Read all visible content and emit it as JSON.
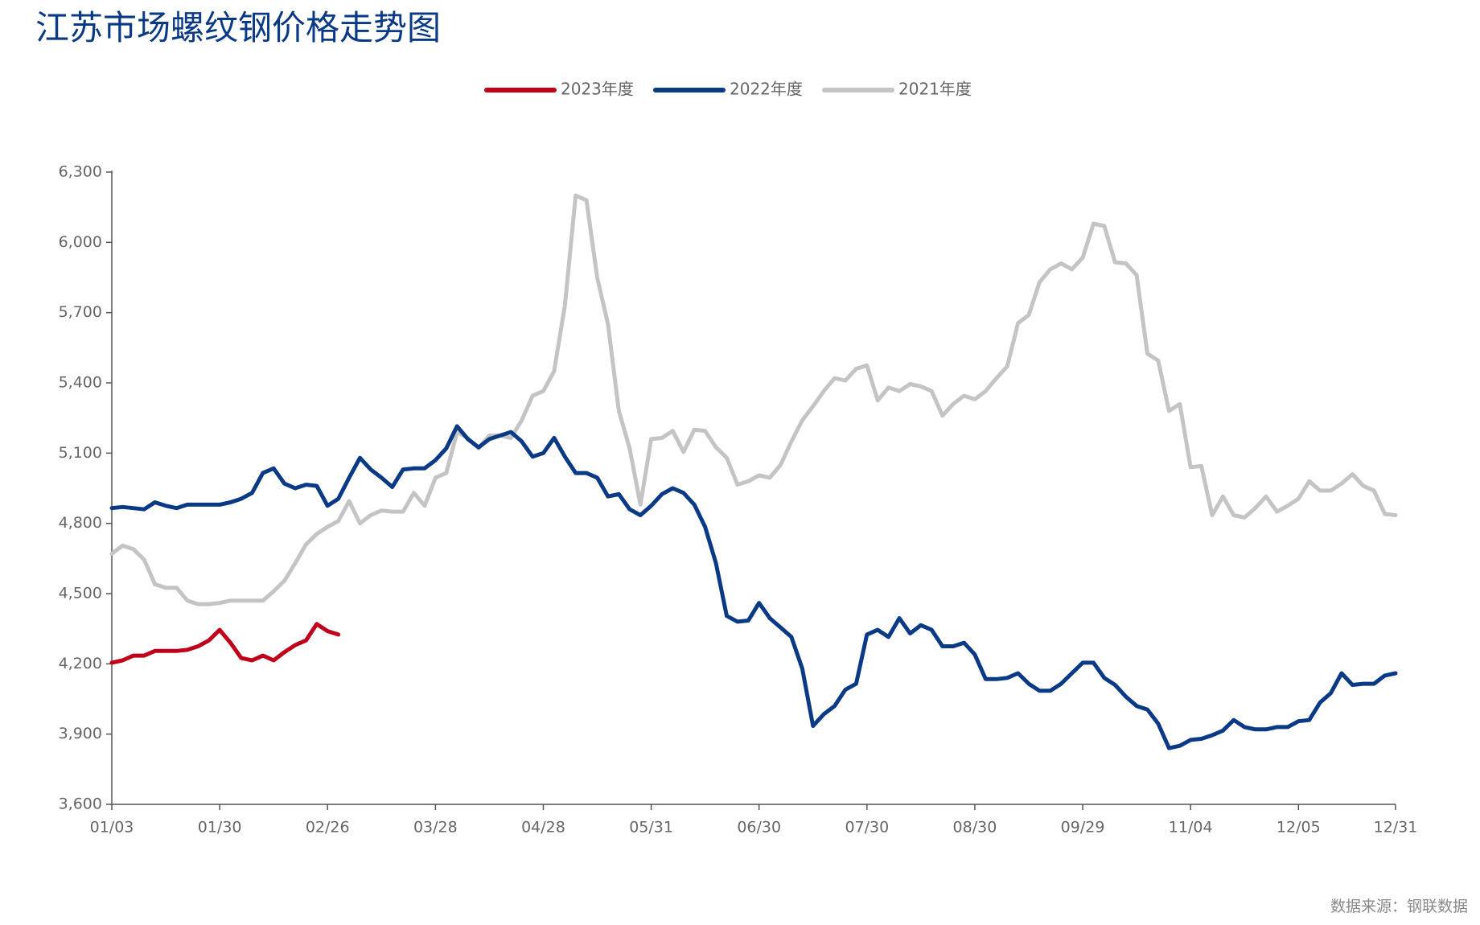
{
  "chart_data": {
    "type": "line",
    "title": "江苏市场螺纹钢价格走势图",
    "source": "数据来源：钢联数据",
    "categories": [
      "01/03",
      null,
      null,
      null,
      null,
      null,
      null,
      null,
      null,
      null,
      "01/30",
      null,
      null,
      null,
      null,
      null,
      null,
      null,
      null,
      null,
      "02/26",
      null,
      null,
      null,
      null,
      null,
      null,
      null,
      null,
      null,
      "03/28",
      null,
      null,
      null,
      null,
      null,
      null,
      null,
      null,
      null,
      "04/28",
      null,
      null,
      null,
      null,
      null,
      null,
      null,
      null,
      null,
      "05/31",
      null,
      null,
      null,
      null,
      null,
      null,
      null,
      null,
      null,
      "06/30",
      null,
      null,
      null,
      null,
      null,
      null,
      null,
      null,
      null,
      "07/30",
      null,
      null,
      null,
      null,
      null,
      null,
      null,
      null,
      null,
      "08/30",
      null,
      null,
      null,
      null,
      null,
      null,
      null,
      null,
      null,
      "09/29",
      null,
      null,
      null,
      null,
      null,
      null,
      null,
      null,
      null,
      "11/04",
      null,
      null,
      null,
      null,
      null,
      null,
      null,
      null,
      null,
      "12/05",
      null,
      null,
      null,
      null,
      null,
      null,
      null,
      null,
      "12/31"
    ],
    "series": [
      {
        "name": "2023年度",
        "color": "#c0001a",
        "values": [
          4205,
          4215,
          4235,
          4235,
          4255,
          4255,
          4255,
          4260,
          4275,
          4300,
          4345,
          4290,
          4225,
          4215,
          4235,
          4215,
          4250,
          4280,
          4300,
          4370,
          4340,
          4325,
          null,
          null,
          null,
          null,
          null,
          null,
          null,
          null,
          null,
          null,
          null,
          null,
          null,
          null,
          null,
          null,
          null,
          null,
          null,
          null,
          null,
          null,
          null,
          null,
          null,
          null,
          null,
          null,
          null,
          null,
          null,
          null,
          null,
          null,
          null,
          null,
          null,
          null,
          null,
          null,
          null,
          null,
          null,
          null,
          null,
          null,
          null,
          null,
          null,
          null,
          null,
          null,
          null,
          null,
          null,
          null,
          null,
          null,
          null,
          null,
          null,
          null,
          null,
          null,
          null,
          null,
          null,
          null,
          null,
          null,
          null,
          null,
          null,
          null,
          null,
          null,
          null,
          null,
          null,
          null,
          null,
          null,
          null,
          null,
          null,
          null,
          null,
          null,
          null,
          null,
          null,
          null,
          null,
          null,
          null,
          null,
          null,
          null
        ]
      },
      {
        "name": "2022年度",
        "color": "#0a3a85",
        "values": [
          4865,
          4870,
          4865,
          4860,
          4890,
          4875,
          4865,
          4880,
          4880,
          4880,
          4880,
          4890,
          4905,
          4930,
          5015,
          5035,
          4970,
          4950,
          4965,
          4960,
          4875,
          4905,
          4995,
          5080,
          5030,
          4995,
          4955,
          5030,
          5035,
          5035,
          5070,
          5120,
          5215,
          5160,
          5125,
          5160,
          5175,
          5190,
          5150,
          5085,
          5100,
          5165,
          5085,
          5015,
          5015,
          4995,
          4915,
          4925,
          4860,
          4835,
          4875,
          4925,
          4950,
          4930,
          4880,
          4785,
          4630,
          4405,
          4380,
          4385,
          4460,
          4395,
          4355,
          4315,
          4180,
          3935,
          3985,
          4020,
          4090,
          4115,
          4325,
          4345,
          4315,
          4395,
          4330,
          4365,
          4345,
          4275,
          4275,
          4290,
          4240,
          4135,
          4135,
          4140,
          4160,
          4115,
          4085,
          4085,
          4115,
          4160,
          4205,
          4205,
          4140,
          4110,
          4060,
          4020,
          4005,
          3945,
          3840,
          3850,
          3875,
          3880,
          3895,
          3915,
          3960,
          3930,
          3920,
          3920,
          3930,
          3930,
          3955,
          3960,
          4035,
          4075,
          4160,
          4110,
          4115,
          4115,
          4150,
          4160
        ]
      },
      {
        "name": "2021年度",
        "color": "#c4c4c4",
        "values": [
          4670,
          4705,
          4690,
          4645,
          4540,
          4525,
          4525,
          4470,
          4455,
          4455,
          4460,
          4470,
          4470,
          4470,
          4470,
          4510,
          4555,
          4630,
          4710,
          4755,
          4785,
          4810,
          4895,
          4800,
          4835,
          4855,
          4850,
          4850,
          4930,
          4875,
          4995,
          5015,
          5190,
          5165,
          5120,
          5175,
          5175,
          5165,
          5240,
          5345,
          5365,
          5450,
          5730,
          6200,
          6180,
          5850,
          5650,
          5280,
          5120,
          4880,
          5160,
          5165,
          5195,
          5105,
          5200,
          5195,
          5125,
          5080,
          4965,
          4980,
          5005,
          4995,
          5050,
          5150,
          5240,
          5300,
          5365,
          5420,
          5410,
          5460,
          5475,
          5325,
          5380,
          5365,
          5395,
          5385,
          5365,
          5260,
          5310,
          5345,
          5330,
          5365,
          5420,
          5470,
          5655,
          5690,
          5830,
          5885,
          5910,
          5885,
          5935,
          6080,
          6070,
          5915,
          5910,
          5860,
          5525,
          5495,
          5280,
          5310,
          5040,
          5045,
          4835,
          4915,
          4835,
          4825,
          4865,
          4915,
          4850,
          4875,
          4905,
          4980,
          4940,
          4940,
          4970,
          5010,
          4960,
          4940,
          4840,
          4835
        ]
      }
    ],
    "ylim": [
      3600,
      6300
    ],
    "yticks": [
      {
        "value": 3600,
        "label": "3,600"
      },
      {
        "value": 3900,
        "label": "3,900"
      },
      {
        "value": 4200,
        "label": "4,200"
      },
      {
        "value": 4500,
        "label": "4,500"
      },
      {
        "value": 4800,
        "label": "4,800"
      },
      {
        "value": 5100,
        "label": "5,100"
      },
      {
        "value": 5400,
        "label": "5,400"
      },
      {
        "value": 5700,
        "label": "5,700"
      },
      {
        "value": 6000,
        "label": "6,000"
      },
      {
        "value": 6300,
        "label": "6,300"
      }
    ],
    "grid": false,
    "legend": "top"
  }
}
